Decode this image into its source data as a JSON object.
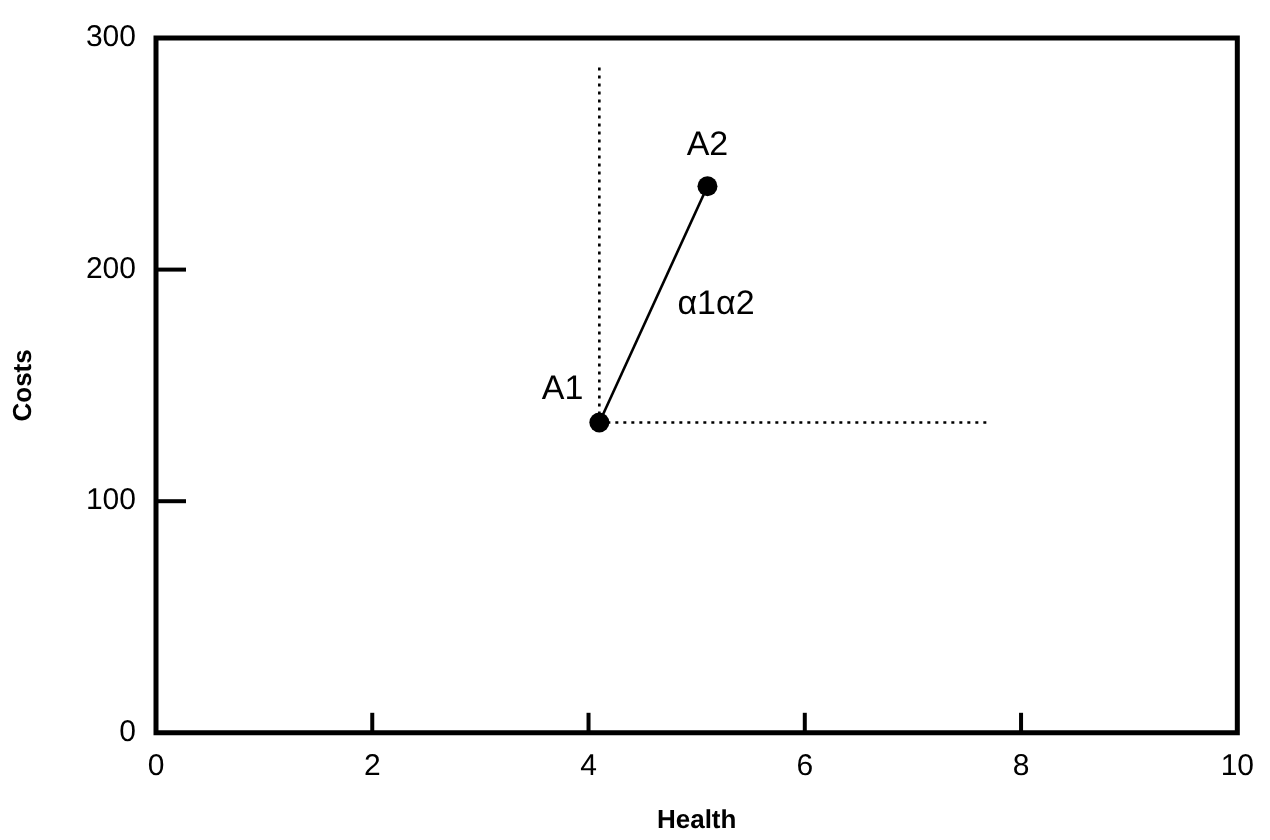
{
  "chart_data": {
    "type": "scatter",
    "xlabel": "Health",
    "ylabel": "Costs",
    "xlim": [
      0,
      10
    ],
    "xticks": [
      0,
      2,
      4,
      6,
      8,
      10
    ],
    "ylim": [
      0,
      300
    ],
    "yticks": [
      0,
      100,
      200,
      300
    ],
    "grid": false,
    "legend": false,
    "series": [
      {
        "type": "line",
        "x": [
          4.1,
          4.1
        ],
        "values": [
          134,
          288
        ],
        "color": "#000000",
        "line_style": "dotted",
        "marker": "none"
      },
      {
        "type": "line",
        "x": [
          4.1,
          7.7
        ],
        "values": [
          134,
          134
        ],
        "color": "#000000",
        "line_style": "dotted",
        "marker": "none"
      },
      {
        "type": "line",
        "x": [
          4.1,
          5.1
        ],
        "values": [
          134,
          236
        ],
        "color": "#000000",
        "line_style": "solid",
        "marker": "none"
      },
      {
        "type": "scatter",
        "x": [
          4.1,
          5.1
        ],
        "values": [
          134,
          236
        ],
        "color": "#000000",
        "marker": "circle"
      }
    ],
    "annotations": [
      {
        "text": "A1",
        "x": 4.1,
        "y": 134
      },
      {
        "text": "A2",
        "x": 5.1,
        "y": 236
      },
      {
        "text": "α1α2",
        "x": 4.6,
        "y": 185
      }
    ]
  }
}
